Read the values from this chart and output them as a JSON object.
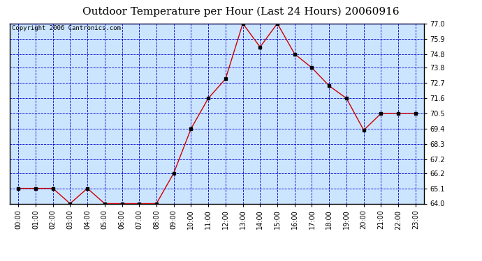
{
  "title": "Outdoor Temperature per Hour (Last 24 Hours) 20060916",
  "copyright_text": "Copyright 2006 Cantronics.com",
  "hours": [
    "00:00",
    "01:00",
    "02:00",
    "03:00",
    "04:00",
    "05:00",
    "06:00",
    "07:00",
    "08:00",
    "09:00",
    "10:00",
    "11:00",
    "12:00",
    "13:00",
    "14:00",
    "15:00",
    "16:00",
    "17:00",
    "18:00",
    "19:00",
    "20:00",
    "21:00",
    "22:00",
    "23:00"
  ],
  "temps": [
    65.1,
    65.1,
    65.1,
    64.0,
    65.1,
    64.0,
    64.0,
    64.0,
    64.0,
    66.2,
    69.4,
    71.6,
    73.0,
    77.0,
    75.3,
    77.0,
    74.8,
    73.8,
    72.5,
    71.6,
    69.3,
    70.5,
    70.5,
    70.5
  ],
  "ylim_min": 64.0,
  "ylim_max": 77.0,
  "yticks": [
    64.0,
    65.1,
    66.2,
    67.2,
    68.3,
    69.4,
    70.5,
    71.6,
    72.7,
    73.8,
    74.8,
    75.9,
    77.0
  ],
  "line_color": "#cc0000",
  "marker_color": "#000000",
  "plot_bg_color": "#cce5ff",
  "grid_color": "#0000cc",
  "title_color": "#000000",
  "title_fontsize": 11,
  "copyright_fontsize": 6.5,
  "tick_fontsize": 7,
  "border_color": "#000000"
}
